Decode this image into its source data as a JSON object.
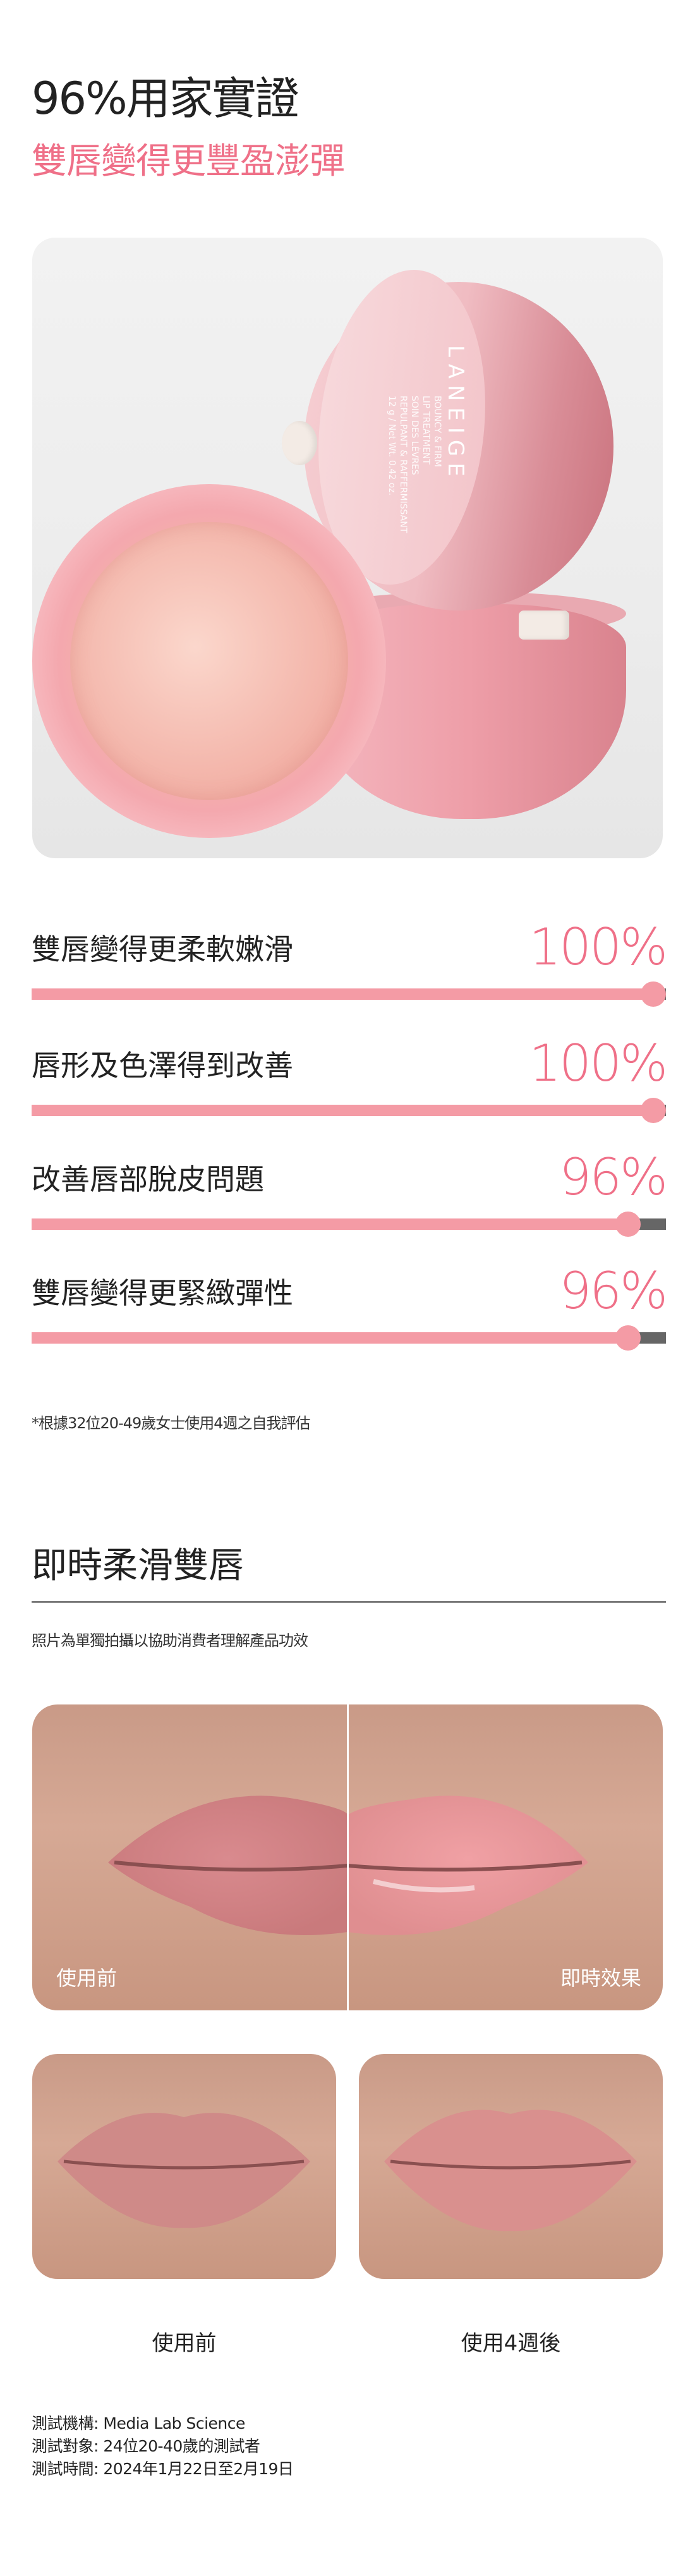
{
  "header": {
    "title": "96%用家實證",
    "subtitle": "雙唇變得更豐盈澎彈"
  },
  "product_image": {
    "brand": "LANEIGE",
    "product_lines": [
      "BOUNCY & FIRM",
      "LIP TREATMENT",
      "SOIN DES LÈVRES",
      "REPULPANT & RAFFERMISSANT",
      "12 g / Net Wt. 0.42 oz."
    ]
  },
  "stats": [
    {
      "label": "雙唇變得更柔軟嫩滑",
      "value_text": "100%",
      "percent": 100
    },
    {
      "label": "唇形及色澤得到改善",
      "value_text": "100%",
      "percent": 100
    },
    {
      "label": "改善唇部脫皮問題",
      "value_text": "96%",
      "percent": 96
    },
    {
      "label": "雙唇變得更緊緻彈性",
      "value_text": "96%",
      "percent": 96
    }
  ],
  "footnote": "*根據32位20-49歲女士使用4週之自我評估",
  "section2": {
    "title": "即時柔滑雙唇",
    "caption": "照片為單獨拍攝以協助消費者理解產品功效",
    "instant": {
      "before_label": "使用前",
      "after_label": "即時效果"
    },
    "comparison": {
      "before_label": "使用前",
      "after_label": "使用4週後"
    }
  },
  "test_info": [
    "測試機構: Media Lab Science",
    "測試對象: 24位20-40歲的測試者",
    "測試時間: 2024年1月22日至2月19日"
  ],
  "colors": {
    "accent": "#ef7088",
    "bar_fill": "#f49ba5",
    "bar_track": "#666666",
    "divider": "#777777"
  }
}
